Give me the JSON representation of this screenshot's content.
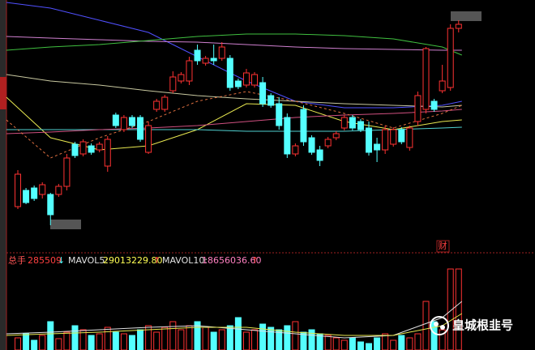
{
  "chart_data": {
    "type": "candlestick",
    "up_color": "#ff3232",
    "down_color": "#54ffff",
    "ylim": [
      0,
      300
    ],
    "open": [
      45,
      65,
      68,
      60,
      60,
      60,
      70,
      122,
      110,
      120,
      115,
      95,
      158,
      140,
      155,
      155,
      112,
      165,
      165,
      188,
      200,
      200,
      238,
      222,
      228,
      228,
      228,
      200,
      195,
      195,
      198,
      182,
      172,
      155,
      110,
      165,
      130,
      115,
      120,
      130,
      142,
      155,
      150,
      142,
      122,
      115,
      122,
      140,
      118,
      150,
      165,
      175,
      188,
      192,
      265
    ],
    "close": [
      85,
      50,
      55,
      72,
      35,
      70,
      105,
      108,
      125,
      112,
      122,
      128,
      145,
      155,
      145,
      128,
      145,
      175,
      180,
      205,
      208,
      225,
      225,
      228,
      225,
      242,
      192,
      193,
      210,
      208,
      172,
      170,
      145,
      110,
      120,
      125,
      112,
      102,
      128,
      135,
      155,
      142,
      140,
      112,
      115,
      140,
      140,
      125,
      142,
      182,
      240,
      165,
      200,
      265,
      270
    ],
    "high": [
      90,
      68,
      71,
      75,
      62,
      73,
      110,
      125,
      128,
      123,
      125,
      132,
      161,
      158,
      158,
      158,
      150,
      178,
      183,
      212,
      211,
      230,
      245,
      231,
      245,
      248,
      232,
      203,
      215,
      211,
      205,
      185,
      180,
      160,
      123,
      170,
      133,
      120,
      131,
      138,
      158,
      158,
      153,
      150,
      130,
      145,
      143,
      143,
      145,
      187,
      242,
      178,
      220,
      270,
      275
    ],
    "low": [
      42,
      48,
      52,
      55,
      22,
      57,
      65,
      105,
      107,
      109,
      112,
      88,
      142,
      137,
      142,
      125,
      110,
      162,
      162,
      185,
      197,
      195,
      220,
      219,
      220,
      225,
      188,
      190,
      192,
      192,
      168,
      167,
      140,
      105,
      107,
      120,
      109,
      95,
      117,
      127,
      139,
      139,
      137,
      108,
      100,
      110,
      119,
      122,
      114,
      145,
      160,
      162,
      185,
      188,
      260
    ],
    "ma_x": [
      -1.4,
      4,
      10,
      16,
      22,
      28,
      34,
      40,
      46,
      52,
      54.4
    ],
    "ma_lines": [
      {
        "color": "#5050ff",
        "dashed": false,
        "values": [
          297,
          290,
          275,
          260,
          230,
          200,
          175,
          167,
          167,
          170,
          175
        ]
      },
      {
        "color": "#d080d0",
        "dashed": false,
        "values": [
          255,
          253,
          251,
          249,
          248,
          245,
          242,
          240,
          239,
          238,
          238
        ]
      },
      {
        "color": "#40c040",
        "dashed": false,
        "values": [
          238,
          242,
          245,
          250,
          255,
          258,
          258,
          256,
          252,
          242,
          232
        ]
      },
      {
        "color": "#c8c8a0",
        "dashed": false,
        "values": [
          208,
          200,
          195,
          188,
          182,
          178,
          175,
          172,
          170,
          168,
          170
        ]
      },
      {
        "color": "#e8e850",
        "dashed": false,
        "values": [
          180,
          130,
          115,
          120,
          140,
          172,
          170,
          150,
          140,
          150,
          152
        ]
      },
      {
        "color": "#50d0d0",
        "dashed": false,
        "values": [
          140,
          140,
          140,
          140,
          140,
          138,
          138,
          138,
          140,
          142,
          143
        ]
      },
      {
        "color": "#d05080",
        "dashed": false,
        "values": [
          135,
          137,
          140,
          142,
          145,
          150,
          155,
          158,
          160,
          163,
          165
        ]
      },
      {
        "color": "#e07040",
        "dashed": true,
        "values": [
          152,
          105,
          130,
          150,
          175,
          187,
          175,
          160,
          142,
          160,
          170
        ]
      }
    ],
    "volume": {
      "ylim": [
        0,
        115
      ],
      "values": [
        15,
        20,
        12,
        18,
        35,
        14,
        22,
        30,
        25,
        18,
        20,
        28,
        22,
        20,
        18,
        25,
        30,
        22,
        28,
        35,
        25,
        30,
        35,
        28,
        22,
        25,
        30,
        40,
        22,
        25,
        32,
        28,
        25,
        30,
        35,
        22,
        25,
        20,
        18,
        15,
        12,
        15,
        10,
        8,
        15,
        20,
        12,
        18,
        15,
        20,
        60,
        35,
        25,
        100,
        100
      ],
      "ma_lines": [
        {
          "color": "#e0e0e0",
          "values": [
            20,
            22,
            25,
            28,
            30,
            25,
            20,
            15,
            18,
            40,
            60
          ]
        },
        {
          "color": "#e8e850",
          "values": [
            18,
            20,
            22,
            25,
            28,
            28,
            22,
            18,
            18,
            30,
            45
          ]
        }
      ]
    },
    "volume_label": "总手",
    "volume_value": "285509",
    "volume_arrow": "↓",
    "indicators": [
      {
        "name": "MAVOL5:",
        "value": "29013229.80",
        "arrow": "↑",
        "color": "#ffff54"
      },
      {
        "name": "MAVOL10:",
        "value": "18656036.60",
        "arrow": "↑",
        "color": "#ff80c0"
      }
    ],
    "badge": "财",
    "watermark": "皇城根韭号"
  }
}
